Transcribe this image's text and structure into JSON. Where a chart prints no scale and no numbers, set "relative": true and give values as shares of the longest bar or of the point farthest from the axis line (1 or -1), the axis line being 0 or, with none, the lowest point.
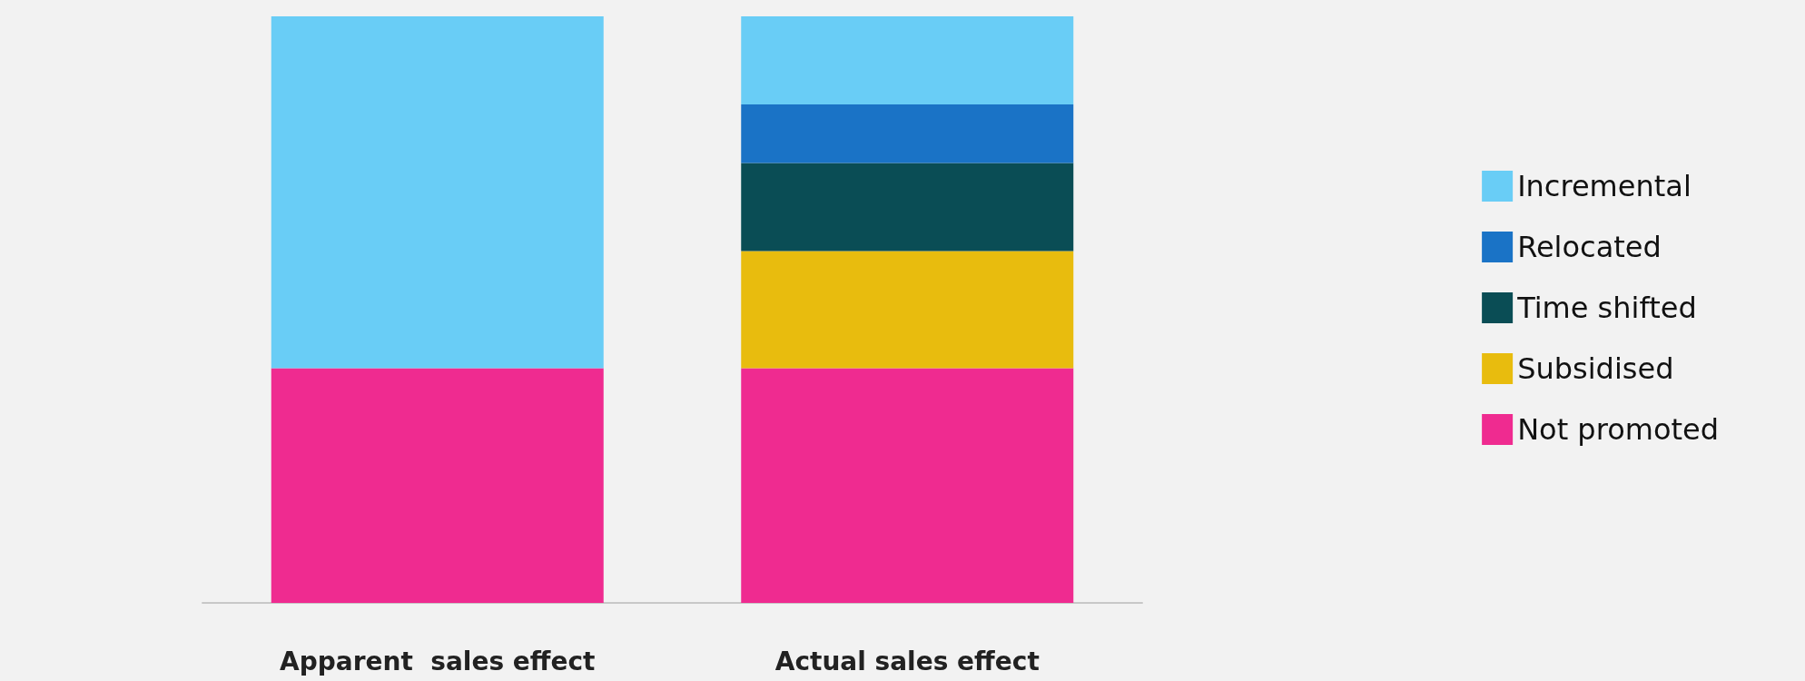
{
  "chart_data": {
    "type": "bar",
    "stacked": true,
    "relative": true,
    "legend": "right",
    "categories": [
      "Apparent  sales effect",
      "Actual sales effect"
    ],
    "series": [
      {
        "name": "Not promoted",
        "color": "#ef2b90",
        "values": [
          0.4,
          0.4
        ]
      },
      {
        "name": "Subsidised",
        "color": "#e8bc0e",
        "values": [
          null,
          0.2
        ]
      },
      {
        "name": "Time shifted",
        "color": "#0a4d55",
        "values": [
          null,
          0.15
        ]
      },
      {
        "name": "Relocated",
        "color": "#1a73c6",
        "values": [
          null,
          0.1
        ]
      },
      {
        "name": "Incremental",
        "color": "#69cdf6",
        "values": [
          0.6,
          0.15
        ]
      }
    ]
  }
}
